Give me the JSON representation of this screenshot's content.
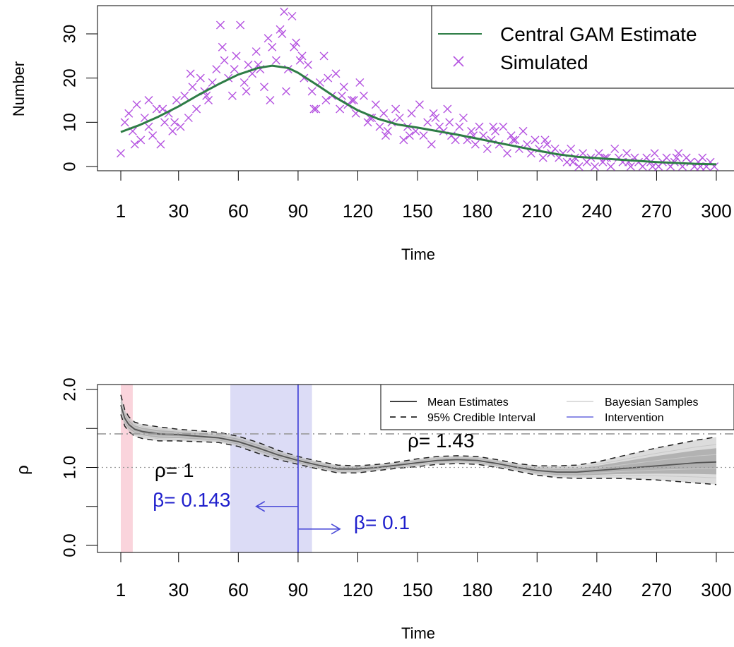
{
  "chart_data": [
    {
      "type": "scatter",
      "xlabel": "Time",
      "ylabel": "Number",
      "xlim": [
        1,
        300
      ],
      "ylim": [
        0,
        35
      ],
      "x_ticks": [
        "1",
        "30",
        "60",
        "90",
        "120",
        "150",
        "180",
        "210",
        "240",
        "270",
        "300"
      ],
      "x_tick_values": [
        1,
        30,
        60,
        90,
        120,
        150,
        180,
        210,
        240,
        270,
        300
      ],
      "y_ticks": [
        "0",
        "10",
        "20",
        "30"
      ],
      "y_tick_values": [
        0,
        10,
        20,
        30
      ],
      "legend": {
        "position": "top-right",
        "entries": [
          "Central GAM Estimate",
          "Simulated"
        ]
      },
      "colors": {
        "gam": "#2e7d46",
        "simulated": "#b452e0"
      },
      "series": [
        {
          "name": "Central GAM Estimate",
          "kind": "line",
          "x": [
            1,
            10,
            20,
            30,
            40,
            50,
            60,
            70,
            77,
            85,
            90,
            100,
            110,
            120,
            130,
            140,
            150,
            160,
            170,
            180,
            190,
            200,
            210,
            220,
            230,
            240,
            250,
            260,
            270,
            280,
            290,
            300
          ],
          "y": [
            7.8,
            9.3,
            11.3,
            13.6,
            16.2,
            18.6,
            20.8,
            22.3,
            22.8,
            22.3,
            21.2,
            18.3,
            15.3,
            12.7,
            10.8,
            9.5,
            8.8,
            8.0,
            7.2,
            6.3,
            5.4,
            4.5,
            3.6,
            2.8,
            2.2,
            1.9,
            1.6,
            1.3,
            1.0,
            0.8,
            0.6,
            0.5
          ]
        },
        {
          "name": "Simulated",
          "kind": "points",
          "x": [
            1,
            3,
            5,
            7,
            9,
            11,
            13,
            15,
            17,
            19,
            21,
            23,
            25,
            27,
            29,
            31,
            33,
            35,
            37,
            39,
            41,
            43,
            45,
            47,
            49,
            51,
            53,
            55,
            57,
            59,
            61,
            63,
            65,
            67,
            69,
            71,
            73,
            75,
            77,
            79,
            81,
            83,
            85,
            87,
            89,
            91,
            93,
            95,
            97,
            99,
            101,
            103,
            105,
            107,
            109,
            111,
            113,
            115,
            117,
            119,
            121,
            123,
            125,
            127,
            129,
            131,
            133,
            135,
            137,
            139,
            141,
            143,
            145,
            147,
            149,
            151,
            153,
            155,
            157,
            159,
            161,
            163,
            165,
            167,
            169,
            171,
            173,
            175,
            177,
            179,
            181,
            183,
            185,
            187,
            189,
            191,
            193,
            195,
            197,
            199,
            201,
            203,
            205,
            207,
            209,
            211,
            213,
            215,
            217,
            219,
            221,
            223,
            225,
            227,
            229,
            231,
            233,
            235,
            237,
            239,
            241,
            243,
            245,
            247,
            249,
            251,
            253,
            255,
            257,
            259,
            261,
            263,
            265,
            267,
            269,
            271,
            273,
            275,
            277,
            279,
            281,
            283,
            285,
            287,
            289,
            291,
            293,
            295,
            297,
            299,
            8,
            15,
            22,
            28,
            36,
            44,
            52,
            58,
            64,
            70,
            76,
            82,
            84,
            88,
            92,
            98,
            104,
            112,
            118,
            126,
            134,
            146,
            158,
            166,
            178,
            188,
            198,
            214,
            228,
            244,
            256,
            268,
            280,
            292
          ],
          "y": [
            3,
            10,
            12,
            8,
            14,
            6,
            11,
            9,
            7,
            13,
            5,
            10,
            12,
            8,
            15,
            9,
            16,
            11,
            18,
            13,
            20,
            17,
            15,
            19,
            22,
            32,
            24,
            20,
            16,
            25,
            32,
            19,
            23,
            21,
            26,
            22,
            18,
            29,
            27,
            24,
            31,
            35,
            22,
            34,
            28,
            24,
            20,
            23,
            17,
            13,
            19,
            25,
            20,
            16,
            21,
            13,
            18,
            14,
            15,
            12,
            19,
            16,
            10,
            11,
            14,
            9,
            12,
            8,
            10,
            13,
            11,
            6,
            9,
            12,
            8,
            14,
            7,
            10,
            5,
            11,
            9,
            8,
            13,
            7,
            6,
            9,
            11,
            6,
            8,
            5,
            9,
            7,
            4,
            6,
            8,
            5,
            9,
            3,
            7,
            6,
            4,
            8,
            5,
            3,
            6,
            4,
            2,
            5,
            3,
            4,
            2,
            3,
            1,
            4,
            2,
            0,
            3,
            1,
            2,
            0,
            3,
            1,
            2,
            0,
            4,
            2,
            1,
            3,
            0,
            2,
            1,
            0,
            2,
            1,
            3,
            0,
            1,
            2,
            0,
            1,
            3,
            0,
            2,
            1,
            0,
            1,
            2,
            0,
            1,
            0,
            5,
            15,
            13,
            10,
            21,
            16,
            27,
            22,
            17,
            23,
            15,
            30,
            17,
            27,
            25,
            13,
            15,
            16,
            15,
            11,
            7,
            7,
            12,
            10,
            7,
            9,
            6,
            6,
            1,
            2,
            1,
            0,
            2,
            0
          ]
        }
      ]
    },
    {
      "type": "line",
      "xlabel": "Time",
      "ylabel": "ρ",
      "xlim": [
        1,
        300
      ],
      "ylim": [
        0,
        2
      ],
      "x_ticks": [
        "1",
        "30",
        "60",
        "90",
        "120",
        "150",
        "180",
        "210",
        "240",
        "270",
        "300"
      ],
      "x_tick_values": [
        1,
        30,
        60,
        90,
        120,
        150,
        180,
        210,
        240,
        270,
        300
      ],
      "y_ticks": [
        "0.0",
        "0.5",
        "1.0",
        "1.5",
        "2.0"
      ],
      "y_tick_values": [
        0,
        0.5,
        1,
        1.5,
        2
      ],
      "y_tick_labeled": [
        "0.0",
        "",
        "1.0",
        "",
        "2.0"
      ],
      "legend": {
        "position": "top-right",
        "entries": [
          "Mean Estimates",
          "95% Credible Interval",
          "Bayesian Samples",
          "Intervention"
        ]
      },
      "colors": {
        "mean": "#555555",
        "ci": "#222222",
        "samples": "#bfbfbf",
        "intervention": "#4b4bd8",
        "intervention_band": "#dcdcf6",
        "early_band": "#fad4dc",
        "reference": "#9a9a9a",
        "annotation_blue": "#1f1fcc"
      },
      "reference_lines": [
        {
          "y": 1.0,
          "style": "dotted"
        },
        {
          "y": 1.43,
          "style": "dashdot"
        }
      ],
      "bands": [
        {
          "x0": 1,
          "x1": 7,
          "kind": "early"
        },
        {
          "x0": 56,
          "x1": 97,
          "kind": "intervention"
        }
      ],
      "intervention_x": 90,
      "annotations": [
        {
          "text": "ρ= 1",
          "x": 18,
          "y": 0.88,
          "color": "black"
        },
        {
          "text": "ρ= 1.43",
          "x": 145,
          "y": 1.26,
          "color": "black"
        },
        {
          "text": "β= 0.143",
          "x": 17,
          "y": 0.5,
          "color": "blue"
        },
        {
          "text": "β= 0.1",
          "x": 118,
          "y": 0.21,
          "color": "blue"
        }
      ],
      "arrows": [
        {
          "from": [
            90,
            0.5
          ],
          "to": [
            69,
            0.5
          ]
        },
        {
          "from": [
            90,
            0.21
          ],
          "to": [
            111,
            0.21
          ]
        }
      ],
      "series": [
        {
          "name": "Mean Estimates",
          "kind": "line",
          "x": [
            1,
            3,
            5,
            8,
            12,
            20,
            30,
            40,
            50,
            60,
            70,
            80,
            90,
            100,
            110,
            120,
            130,
            140,
            150,
            160,
            170,
            180,
            190,
            200,
            210,
            220,
            230,
            240,
            250,
            260,
            270,
            280,
            290,
            300
          ],
          "y": [
            1.8,
            1.63,
            1.55,
            1.49,
            1.46,
            1.43,
            1.42,
            1.4,
            1.38,
            1.33,
            1.25,
            1.16,
            1.09,
            1.03,
            0.98,
            0.98,
            1.0,
            1.03,
            1.06,
            1.09,
            1.1,
            1.09,
            1.05,
            1.0,
            0.96,
            0.94,
            0.94,
            0.96,
            0.98,
            1.0,
            1.02,
            1.04,
            1.06,
            1.07
          ]
        },
        {
          "name": "95% Credible Interval",
          "kind": "upper",
          "x": [
            1,
            3,
            5,
            8,
            12,
            20,
            30,
            40,
            50,
            60,
            70,
            80,
            90,
            100,
            110,
            120,
            130,
            140,
            150,
            160,
            170,
            180,
            190,
            200,
            210,
            220,
            230,
            240,
            250,
            260,
            270,
            280,
            290,
            300
          ],
          "y": [
            1.93,
            1.74,
            1.65,
            1.58,
            1.55,
            1.52,
            1.49,
            1.47,
            1.45,
            1.4,
            1.32,
            1.22,
            1.14,
            1.08,
            1.03,
            1.02,
            1.04,
            1.07,
            1.11,
            1.14,
            1.15,
            1.14,
            1.1,
            1.05,
            1.02,
            1.02,
            1.03,
            1.07,
            1.13,
            1.19,
            1.25,
            1.3,
            1.35,
            1.39
          ]
        },
        {
          "name": "95% Credible Interval",
          "kind": "lower",
          "x": [
            1,
            3,
            5,
            8,
            12,
            20,
            30,
            40,
            50,
            60,
            70,
            80,
            90,
            100,
            110,
            120,
            130,
            140,
            150,
            160,
            170,
            180,
            190,
            200,
            210,
            220,
            230,
            240,
            250,
            260,
            270,
            280,
            290,
            300
          ],
          "y": [
            1.68,
            1.53,
            1.46,
            1.4,
            1.37,
            1.34,
            1.34,
            1.33,
            1.32,
            1.27,
            1.18,
            1.1,
            1.04,
            0.98,
            0.93,
            0.93,
            0.96,
            0.99,
            1.01,
            1.04,
            1.05,
            1.04,
            1.0,
            0.95,
            0.9,
            0.87,
            0.86,
            0.86,
            0.86,
            0.85,
            0.84,
            0.82,
            0.8,
            0.78
          ]
        }
      ]
    }
  ]
}
